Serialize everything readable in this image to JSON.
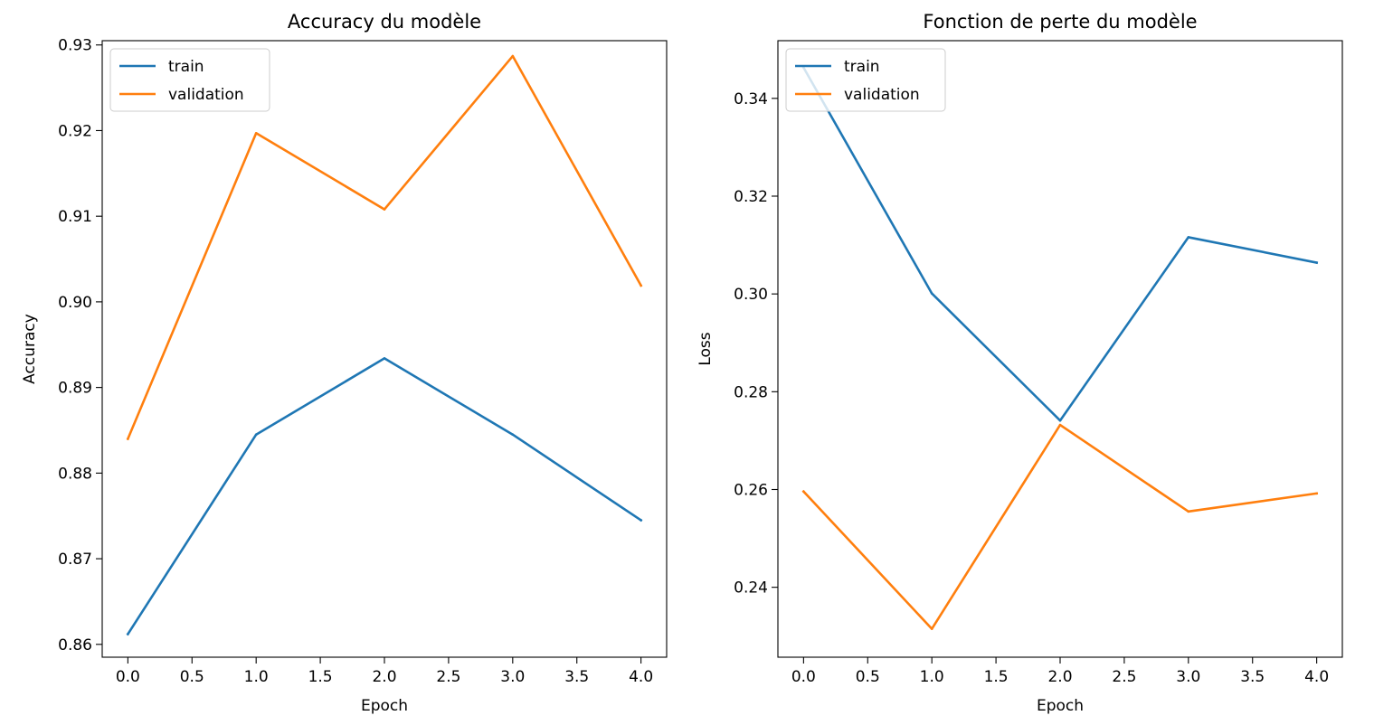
{
  "chart_data": [
    {
      "type": "line",
      "title": "Accuracy du modèle",
      "xlabel": "Epoch",
      "ylabel": "Accuracy",
      "x": [
        0,
        1,
        2,
        3,
        4
      ],
      "xlim": [
        -0.2,
        4.2
      ],
      "ylim": [
        0.8585,
        0.9305
      ],
      "xticks": [
        0.0,
        0.5,
        1.0,
        1.5,
        2.0,
        2.5,
        3.0,
        3.5,
        4.0
      ],
      "xtick_labels": [
        "0.0",
        "0.5",
        "1.0",
        "1.5",
        "2.0",
        "2.5",
        "3.0",
        "3.5",
        "4.0"
      ],
      "yticks": [
        0.86,
        0.87,
        0.88,
        0.89,
        0.9,
        0.91,
        0.92,
        0.93
      ],
      "ytick_labels": [
        "0.86",
        "0.87",
        "0.88",
        "0.89",
        "0.90",
        "0.91",
        "0.92",
        "0.93"
      ],
      "grid": false,
      "legend_position": "upper left",
      "series": [
        {
          "name": "train",
          "color": "#1f77b4",
          "values": [
            0.8612,
            0.8845,
            0.8934,
            0.8845,
            0.8745
          ]
        },
        {
          "name": "validation",
          "color": "#ff7f0e",
          "values": [
            0.884,
            0.9197,
            0.9108,
            0.9287,
            0.9019
          ]
        }
      ]
    },
    {
      "type": "line",
      "title": "Fonction de perte du modèle",
      "xlabel": "Epoch",
      "ylabel": "Loss",
      "x": [
        0,
        1,
        2,
        3,
        4
      ],
      "xlim": [
        -0.2,
        4.2
      ],
      "ylim": [
        0.2257,
        0.3518
      ],
      "xticks": [
        0.0,
        0.5,
        1.0,
        1.5,
        2.0,
        2.5,
        3.0,
        3.5,
        4.0
      ],
      "xtick_labels": [
        "0.0",
        "0.5",
        "1.0",
        "1.5",
        "2.0",
        "2.5",
        "3.0",
        "3.5",
        "4.0"
      ],
      "yticks": [
        0.24,
        0.26,
        0.28,
        0.3,
        0.32,
        0.34
      ],
      "ytick_labels": [
        "0.24",
        "0.26",
        "0.28",
        "0.30",
        "0.32",
        "0.34"
      ],
      "grid": false,
      "legend_position": "upper left",
      "series": [
        {
          "name": "train",
          "color": "#1f77b4",
          "values": [
            0.3463,
            0.3001,
            0.2741,
            0.3116,
            0.3064
          ]
        },
        {
          "name": "validation",
          "color": "#ff7f0e",
          "values": [
            0.2596,
            0.2315,
            0.2732,
            0.2555,
            0.2592
          ]
        }
      ]
    }
  ]
}
